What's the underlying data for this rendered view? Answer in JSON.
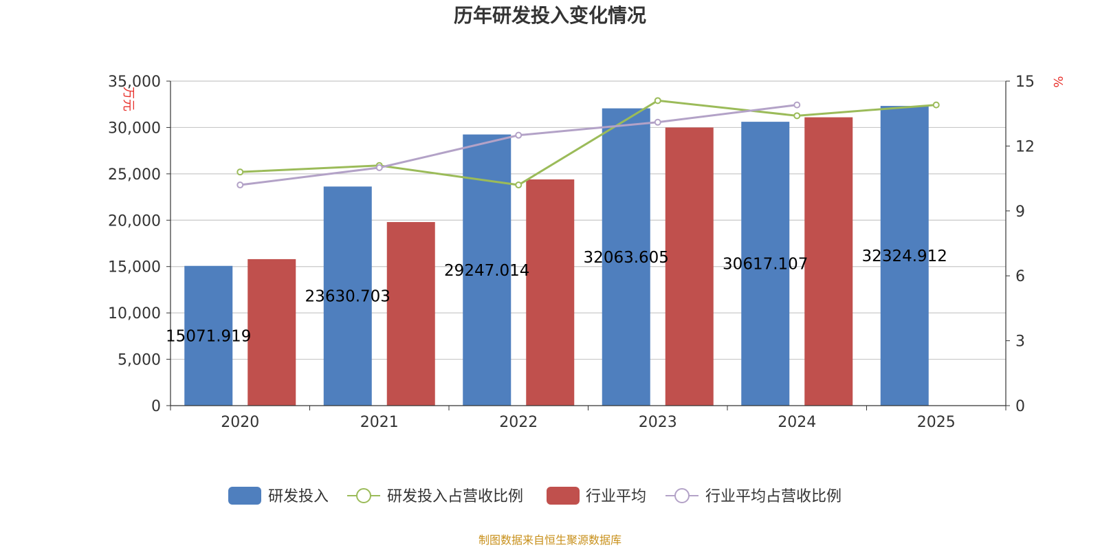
{
  "chart_data": {
    "type": "bar+line",
    "title": "历年研发投入变化情况",
    "categories": [
      "2020",
      "2021",
      "2022",
      "2023",
      "2024",
      "2025"
    ],
    "y_left": {
      "unit": "万元",
      "min": 0,
      "max": 35000,
      "ticks": [
        0,
        5000,
        10000,
        15000,
        20000,
        25000,
        30000,
        35000
      ],
      "tick_labels": [
        "0",
        "5,000",
        "10,000",
        "15,000",
        "20,000",
        "25,000",
        "30,000",
        "35,000"
      ]
    },
    "y_right": {
      "unit": "%",
      "min": 0,
      "max": 15,
      "ticks": [
        0,
        3,
        6,
        9,
        12,
        15
      ],
      "tick_labels": [
        "0",
        "3",
        "6",
        "9",
        "12",
        "15"
      ]
    },
    "grid": true,
    "legend_position": "bottom",
    "series": [
      {
        "name": "研发投入",
        "type": "bar",
        "axis": "left",
        "color": "#4f7fbe",
        "values": [
          15071.919,
          23630.703,
          29247.014,
          32063.605,
          30617.107,
          32324.912
        ],
        "labels": [
          "15071.919",
          "23630.703",
          "29247.014",
          "32063.605",
          "30617.107",
          "32324.912"
        ]
      },
      {
        "name": "研发投入占营收比例",
        "type": "line",
        "axis": "right",
        "color": "#9bbb59",
        "values": [
          10.8,
          11.1,
          10.2,
          14.1,
          13.4,
          13.9
        ]
      },
      {
        "name": "行业平均",
        "type": "bar",
        "axis": "left",
        "color": "#c0504d",
        "values": [
          15800,
          19800,
          24400,
          30000,
          31100,
          null
        ]
      },
      {
        "name": "行业平均占营收比例",
        "type": "line",
        "axis": "right",
        "color": "#b3a2c7",
        "values": [
          10.2,
          11.0,
          12.5,
          13.1,
          13.9,
          null
        ]
      }
    ],
    "source": "制图数据来自恒生聚源数据库"
  }
}
